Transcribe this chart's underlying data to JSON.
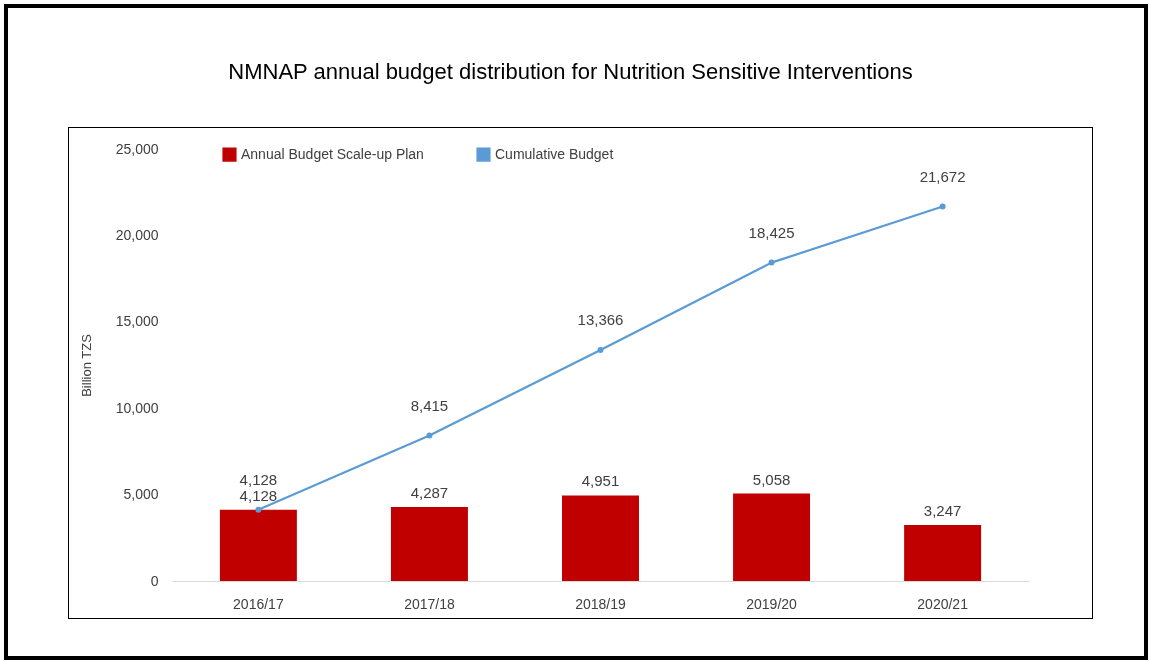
{
  "chart_data": {
    "type": "bar",
    "title": "NMNAP annual budget distribution for Nutrition Sensitive Interventions",
    "ylabel": "Billion TZS",
    "categories": [
      "2016/17",
      "2017/18",
      "2018/19",
      "2019/20",
      "2020/21"
    ],
    "series": [
      {
        "name": "Annual Budget Scale-up Plan",
        "color": "#c00000",
        "values": [
          4128,
          4287,
          4951,
          5058,
          3247
        ],
        "value_labels": [
          "4,128",
          "4,287",
          "4,951",
          "5,058",
          "3,247"
        ]
      },
      {
        "name": "Cumulative Budget",
        "type": "line",
        "color": "#5b9bd5",
        "values": [
          4128,
          8415,
          13366,
          18425,
          21672
        ],
        "value_labels": [
          "4,128",
          "8,415",
          "13,366",
          "18,425",
          "21,672"
        ]
      }
    ],
    "ylim": [
      0,
      25000
    ],
    "yticks": [
      0,
      {
        "value": 5000,
        "label": "5,000"
      },
      {
        "value": 10000,
        "label": "10,000"
      },
      {
        "value": 15000,
        "label": "15,000"
      },
      {
        "value": 20000,
        "label": "20,000"
      },
      {
        "value": 25000,
        "label": "25,000"
      }
    ],
    "marker": "circle",
    "legend": "top left",
    "grid": false
  }
}
